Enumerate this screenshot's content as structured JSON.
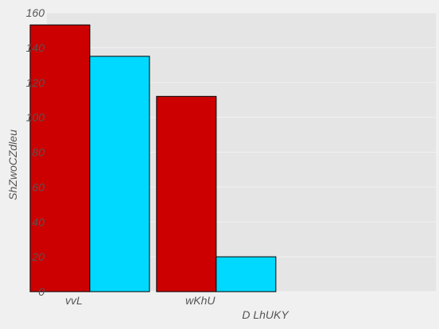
{
  "chart_data": {
    "type": "bar",
    "xlabel": "D LhUKY",
    "ylabel": "ShZwoCZdleu",
    "categories": [
      "vvL",
      "wKhU"
    ],
    "series": [
      {
        "values": [
          153,
          135
        ],
        "color": "#cc0000"
      },
      {
        "values": [
          112,
          20
        ],
        "color": "#00d9ff"
      }
    ],
    "series_layout": "series values are plotted per bar within each category group: category 0 shows series[0].values, category 1 shows series[1].values",
    "ylim": [
      0,
      160
    ],
    "yticks": [
      0,
      20,
      40,
      60,
      80,
      100,
      120,
      140,
      160
    ],
    "grid": true,
    "legend": "none",
    "plot_background": "#e5e5e5",
    "figure_background": "#f0f0f0"
  }
}
